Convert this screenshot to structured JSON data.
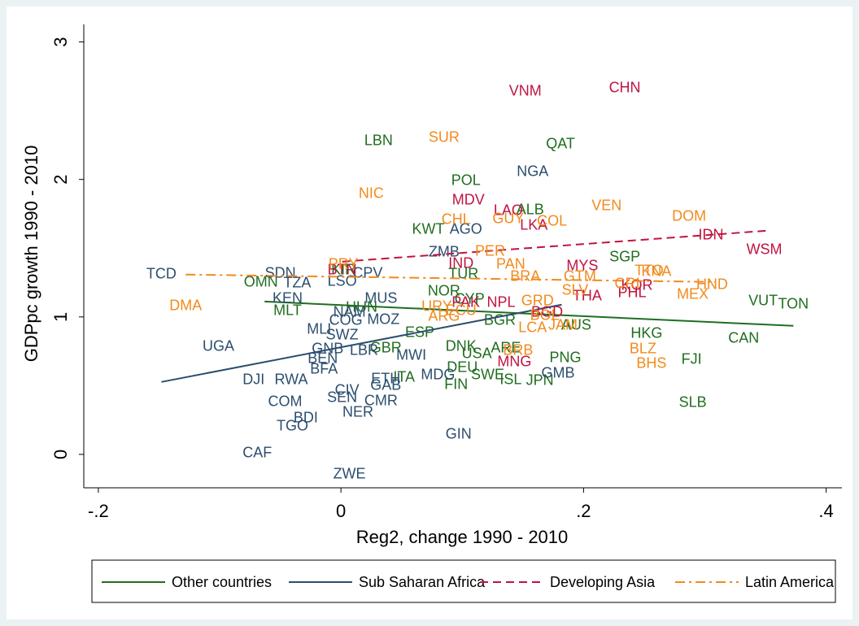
{
  "chart_data": {
    "type": "scatter",
    "x_label": "Reg2, change 1990 - 2010",
    "y_label": "GDPpc growth 1990 - 2010",
    "xlim": [
      -0.212,
      0.413
    ],
    "ylim": [
      -0.243,
      3.187
    ],
    "xticks": [
      {
        "value": -0.2,
        "label": "-.2"
      },
      0,
      {
        "value": 0.2,
        "label": ".2"
      },
      {
        "value": 0.4,
        "label": ".4"
      }
    ],
    "yticks": [
      0,
      1,
      2,
      3
    ],
    "series": [
      {
        "name": "Other countries",
        "color": "#1f6e1f",
        "line_style": "solid",
        "labels": [
          "LBN",
          "QAT",
          "POL",
          "ALB",
          "KWT",
          "SGP",
          "KIR",
          "OMN",
          "VUT",
          "TON",
          "NOR",
          "HKG",
          "CAN",
          "FJI",
          "SLB",
          "PNG",
          "MLT",
          "GBR",
          "DNK",
          "AUS",
          "ESP",
          "USA",
          "ARE",
          "FIN",
          "ITA",
          "DEU",
          "SWE",
          "ISL",
          "JPN",
          "CYP",
          "BGR",
          "HUN",
          "TUR"
        ],
        "x": [
          0.031,
          0.181,
          0.103,
          0.156,
          0.072,
          0.234,
          0.002,
          -0.066,
          0.348,
          0.373,
          0.085,
          0.252,
          0.332,
          0.289,
          0.29,
          0.185,
          -0.044,
          0.037,
          0.099,
          0.194,
          0.065,
          0.112,
          0.136,
          0.095,
          0.052,
          0.1,
          0.121,
          0.14,
          0.164,
          0.106,
          0.131,
          0.017,
          0.101
        ],
        "y": [
          2.278,
          2.254,
          1.988,
          1.775,
          1.633,
          1.432,
          1.337,
          1.249,
          1.112,
          1.089,
          1.183,
          0.876,
          0.84,
          0.686,
          0.373,
          0.698,
          1.041,
          0.769,
          0.781,
          0.935,
          0.882,
          0.728,
          0.769,
          0.503,
          0.556,
          0.627,
          0.574,
          0.538,
          0.533,
          1.124,
          0.97,
          1.065,
          1.308
        ],
        "fit": {
          "x": [
            -0.063,
            0.373
          ],
          "y": [
            1.112,
            0.935
          ]
        }
      },
      {
        "name": "Sub Saharan Africa",
        "color": "#2b4e6e",
        "line_style": "solid",
        "labels": [
          "NGA",
          "AGO",
          "ZMB",
          "SDN",
          "TZA",
          "LSO",
          "KEN",
          "MLI",
          "SWZ",
          "GNB",
          "BEN",
          "BFA",
          "UGA",
          "DJI",
          "RWA",
          "COM",
          "SEN",
          "CIV",
          "BDI",
          "TGO",
          "NER",
          "CMR",
          "ETH",
          "GAB",
          "CAF",
          "ZWE",
          "GIN",
          "GMB",
          "MDG",
          "MWI",
          "NAM",
          "COG",
          "MOZ",
          "MUS",
          "TCD",
          "LBR",
          "CPV"
        ],
        "x": [
          0.158,
          0.103,
          0.085,
          -0.05,
          -0.036,
          0.001,
          -0.044,
          -0.018,
          0.001,
          -0.011,
          -0.015,
          -0.014,
          -0.101,
          -0.072,
          -0.041,
          -0.046,
          0.001,
          0.005,
          -0.029,
          -0.04,
          0.014,
          0.033,
          0.037,
          0.037,
          -0.069,
          0.007,
          0.097,
          0.179,
          0.08,
          0.058,
          0.007,
          0.004,
          0.035,
          0.033,
          -0.148,
          0.019,
          0.022
        ],
        "y": [
          2.053,
          1.633,
          1.467,
          1.314,
          1.243,
          1.254,
          1.13,
          0.905,
          0.864,
          0.763,
          0.692,
          0.615,
          0.781,
          0.538,
          0.538,
          0.379,
          0.408,
          0.462,
          0.26,
          0.201,
          0.302,
          0.385,
          0.544,
          0.497,
          0.006,
          -0.148,
          0.142,
          0.586,
          0.574,
          0.716,
          1.03,
          0.97,
          0.976,
          1.13,
          1.308,
          0.751,
          1.314
        ],
        "fit": {
          "x": [
            -0.148,
            0.182
          ],
          "y": [
            0.527,
            1.089
          ]
        }
      },
      {
        "name": "Developing Asia",
        "color": "#c01440",
        "line_style": "dash",
        "labels": [
          "VNM",
          "CHN",
          "MDV",
          "LAO",
          "LKA",
          "BTN",
          "IND",
          "PAK",
          "NPL",
          "MYS",
          "THA",
          "PHL",
          "IDN",
          "WSM",
          "MNG",
          "BGD",
          "KOR"
        ],
        "x": [
          0.152,
          0.234,
          0.105,
          0.138,
          0.159,
          0.001,
          0.099,
          0.103,
          0.132,
          0.199,
          0.203,
          0.24,
          0.305,
          0.349,
          0.143,
          0.17,
          0.244
        ],
        "y": [
          2.639,
          2.663,
          1.846,
          1.769,
          1.663,
          1.337,
          1.385,
          1.101,
          1.101,
          1.367,
          1.148,
          1.172,
          1.592,
          1.485,
          0.669,
          1.03,
          1.225
        ],
        "fit": {
          "x": [
            0.001,
            0.351
          ],
          "y": [
            1.402,
            1.627
          ]
        }
      },
      {
        "name": "Latin America",
        "color": "#f28a1c",
        "line_style": "dash-dot",
        "labels": [
          "SUR",
          "NIC",
          "CHL",
          "GUY",
          "COL",
          "VEN",
          "DOM",
          "PER",
          "PAN",
          "PRY",
          "BRA",
          "GTM",
          "SLV",
          "HND",
          "MEX",
          "TTO",
          "CRI",
          "URY",
          "ARG",
          "LCA",
          "JAM",
          "BLZ",
          "BHS",
          "DMA",
          "BOL",
          "ECU",
          "KNA",
          "BRB",
          "GRD"
        ],
        "x": [
          0.085,
          0.025,
          0.095,
          0.138,
          0.174,
          0.219,
          0.287,
          0.123,
          0.14,
          0.002,
          0.152,
          0.197,
          0.193,
          0.306,
          0.29,
          0.254,
          0.236,
          0.079,
          0.085,
          0.158,
          0.183,
          0.249,
          0.256,
          -0.128,
          0.168,
          0.099,
          0.26,
          0.146,
          0.162
        ],
        "y": [
          2.302,
          1.893,
          1.704,
          1.71,
          1.692,
          1.805,
          1.728,
          1.473,
          1.379,
          1.379,
          1.29,
          1.29,
          1.189,
          1.231,
          1.16,
          1.331,
          1.237,
          1.071,
          1.0,
          0.917,
          0.935,
          0.763,
          0.657,
          1.077,
          1.006,
          1.041,
          1.325,
          0.751,
          1.112
        ],
        "fit": {
          "x": [
            -0.128,
            0.309
          ],
          "y": [
            1.308,
            1.254
          ]
        }
      }
    ]
  }
}
